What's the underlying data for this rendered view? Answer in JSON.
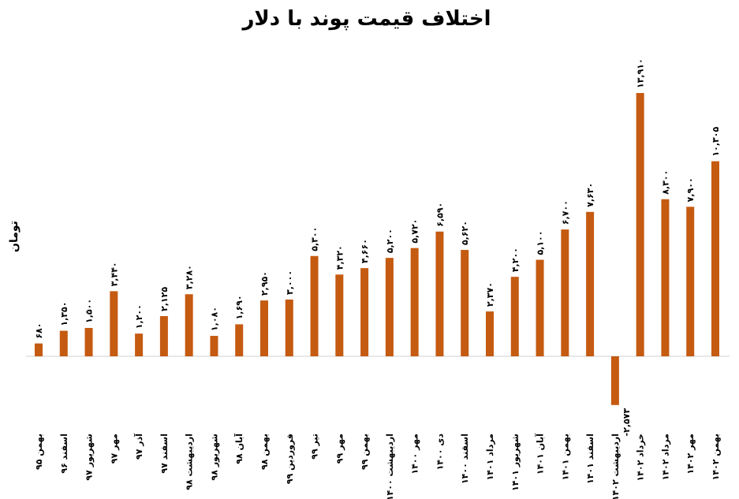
{
  "chart_data": {
    "type": "bar",
    "title": "اختلاف قیمت پوند با دلار",
    "y_label": "تومان",
    "color": "#c55a11",
    "categories": [
      "بهمن ۹۵",
      "اسفند ۹۶",
      "شهریور ۹۷",
      "مهر ۹۷",
      "آذر ۹۷",
      "اسفند ۹۷",
      "اردیبهشت ۹۸",
      "شهریور ۹۸",
      "آبان ۹۸",
      "بهمن ۹۸",
      "فروردین ۹۹",
      "تیر ۹۹",
      "مهر ۹۹",
      "بهمن ۹۹",
      "اردیبهشت ۱۴۰۰",
      "مهر ۱۴۰۰",
      "دی ۱۴۰۰",
      "اسفند ۱۴۰۰",
      "مرداد ۱۴۰۱",
      "شهریور ۱۴۰۱",
      "آبان ۱۴۰۱",
      "بهمن ۱۴۰۱",
      "اسفند ۱۴۰۱",
      "اردیبهشت ۱۴۰۲",
      "خرداد ۱۴۰۲",
      "مرداد ۱۴۰۲",
      "مهر ۱۴۰۲",
      "بهمن ۱۴۰۲"
    ],
    "values": [
      680,
      1350,
      1500,
      3440,
      1200,
      2125,
      3280,
      1080,
      1690,
      2950,
      3000,
      5300,
      4320,
      4660,
      5200,
      5720,
      6590,
      5620,
      2370,
      4200,
      5100,
      6700,
      7630,
      -2573,
      13910,
      8300,
      7900,
      10305
    ],
    "value_labels": [
      "۶۸۰",
      "۱,۳۵۰",
      "۱,۵۰۰",
      "۳,۴۴۰",
      "۱,۲۰۰",
      "۲,۱۲۵",
      "۳,۲۸۰",
      "۱,۰۸۰",
      "۱,۶۹۰",
      "۲,۹۵۰",
      "۳,۰۰۰",
      "۵,۳۰۰",
      "۴,۳۲۰",
      "۴,۶۶۰",
      "۵,۲۰۰",
      "۵,۷۲۰",
      "۶,۵۹۰",
      "۵,۶۲۰",
      "۲,۳۷۰",
      "۴,۲۰۰",
      "۵,۱۰۰",
      "۶,۷۰۰",
      "۷,۶۳۰",
      "-۲,۵۷۳",
      "۱۳,۹۱۰",
      "۸,۳۰۰",
      "۷,۹۰۰",
      "۱۰,۳۰۵"
    ]
  }
}
